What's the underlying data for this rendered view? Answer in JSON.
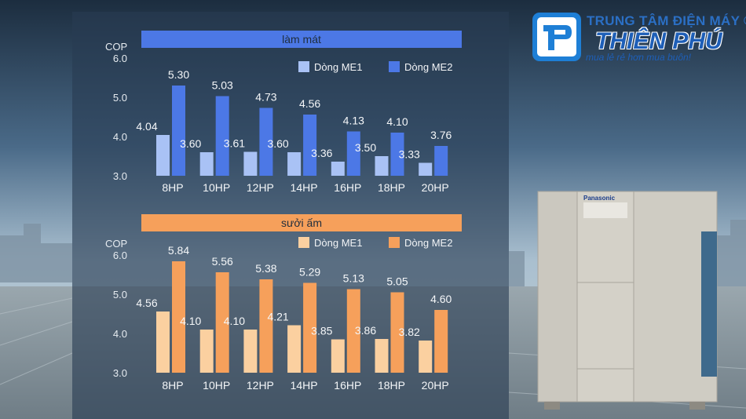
{
  "brand": {
    "line1": "TRUNG TÂM ĐIỆN MÁY ®",
    "name": "THIÊN PHÚ",
    "slogan": "mua lẻ rẻ hơn mua buôn!",
    "unit_brand": "Panasonic",
    "colors": {
      "blue": "#1e5fb8",
      "light_blue": "#2b6fc4"
    }
  },
  "chart_data": [
    {
      "type": "bar",
      "title": "làm mát",
      "ylabel": "COP",
      "ylim": [
        3.0,
        6.0
      ],
      "yticks": [
        "3.0",
        "4.0",
        "5.0",
        "6.0"
      ],
      "categories": [
        "8HP",
        "10HP",
        "12HP",
        "14HP",
        "16HP",
        "18HP",
        "20HP"
      ],
      "series": [
        {
          "name": "Dòng ME1",
          "color": "#a9c2f5",
          "values": [
            4.04,
            3.6,
            3.61,
            3.6,
            3.36,
            3.5,
            3.33
          ],
          "labels": [
            "4.04",
            "3.60",
            "3.61",
            "3.60",
            "3.36",
            "3.50",
            "3.33"
          ]
        },
        {
          "name": "Dòng ME2",
          "color": "#4c78e6",
          "values": [
            5.3,
            5.03,
            4.73,
            4.56,
            4.13,
            4.1,
            3.76
          ],
          "labels": [
            "5.30",
            "5.03",
            "4.73",
            "4.56",
            "4.13",
            "4.10",
            "3.76"
          ]
        }
      ],
      "title_color": "#4c78e6"
    },
    {
      "type": "bar",
      "title": "sưởi ấm",
      "ylabel": "COP",
      "ylim": [
        3.0,
        6.0
      ],
      "yticks": [
        "3.0",
        "4.0",
        "5.0",
        "6.0"
      ],
      "categories": [
        "8HP",
        "10HP",
        "12HP",
        "14HP",
        "16HP",
        "18HP",
        "20HP"
      ],
      "series": [
        {
          "name": "Dòng ME1",
          "color": "#fbd0a0",
          "values": [
            4.56,
            4.1,
            4.1,
            4.21,
            3.85,
            3.86,
            3.82
          ],
          "labels": [
            "4.56",
            "4.10",
            "4.10",
            "4.21",
            "3.85",
            "3.86",
            "3.82"
          ]
        },
        {
          "name": "Dòng ME2",
          "color": "#f6a05b",
          "values": [
            5.84,
            5.56,
            5.38,
            5.29,
            5.13,
            5.05,
            4.6
          ],
          "labels": [
            "5.84",
            "5.56",
            "5.38",
            "5.29",
            "5.13",
            "5.05",
            "4.60"
          ]
        }
      ],
      "title_color": "#f6a05b"
    }
  ]
}
